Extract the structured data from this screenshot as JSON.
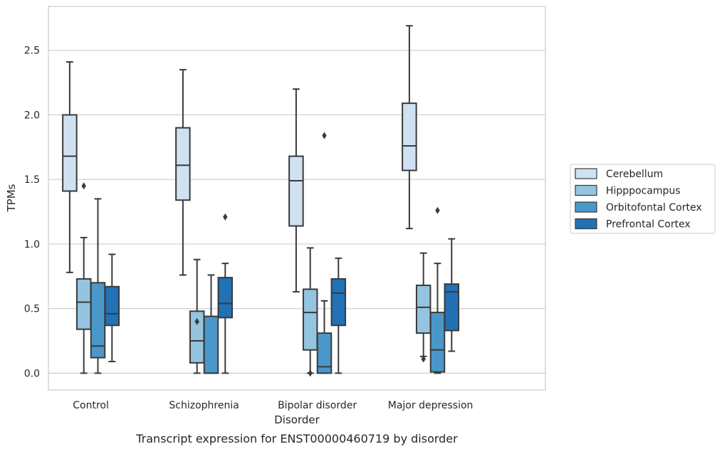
{
  "caption": "Transcript expression for ENST00000460719 by disorder",
  "chart_data": {
    "type": "boxplot",
    "xlabel": "Disorder",
    "ylabel": "TPMs",
    "ylim": [
      -0.13,
      2.84
    ],
    "yticks": [
      "0.0",
      "0.5",
      "1.0",
      "1.5",
      "2.0",
      "2.5"
    ],
    "ytick_values": [
      0.0,
      0.5,
      1.0,
      1.5,
      2.0,
      2.5
    ],
    "grid": "horizontal",
    "legend_position": "right",
    "categories": [
      "Control",
      "Schizophrenia",
      "Bipolar disorder",
      "Major depression"
    ],
    "series": [
      {
        "name": "Cerebellum",
        "color": "#d0e1f2",
        "boxes": [
          {
            "whislo": 0.78,
            "q1": 1.41,
            "med": 1.68,
            "q3": 2.0,
            "whishi": 2.41,
            "fliers": []
          },
          {
            "whislo": 0.76,
            "q1": 1.34,
            "med": 1.61,
            "q3": 1.9,
            "whishi": 2.35,
            "fliers": []
          },
          {
            "whislo": 0.63,
            "q1": 1.14,
            "med": 1.49,
            "q3": 1.68,
            "whishi": 2.2,
            "fliers": []
          },
          {
            "whislo": 1.12,
            "q1": 1.57,
            "med": 1.76,
            "q3": 2.09,
            "whishi": 2.69,
            "fliers": []
          }
        ]
      },
      {
        "name": "Hipppocampus",
        "color": "#94c4df",
        "boxes": [
          {
            "whislo": 0.0,
            "q1": 0.34,
            "med": 0.55,
            "q3": 0.73,
            "whishi": 1.05,
            "fliers": [
              1.45
            ]
          },
          {
            "whislo": 0.0,
            "q1": 0.08,
            "med": 0.25,
            "q3": 0.48,
            "whishi": 0.88,
            "fliers": [
              0.4
            ]
          },
          {
            "whislo": 0.0,
            "q1": 0.18,
            "med": 0.47,
            "q3": 0.65,
            "whishi": 0.97,
            "fliers": [
              0.0
            ]
          },
          {
            "whislo": 0.13,
            "q1": 0.31,
            "med": 0.51,
            "q3": 0.68,
            "whishi": 0.93,
            "fliers": [
              0.11
            ]
          }
        ]
      },
      {
        "name": "Orbitofontal Cortex",
        "color": "#4a98c9",
        "boxes": [
          {
            "whislo": 0.0,
            "q1": 0.12,
            "med": 0.21,
            "q3": 0.7,
            "whishi": 1.35,
            "fliers": []
          },
          {
            "whislo": 0.0,
            "q1": 0.0,
            "med": 0.0,
            "q3": 0.44,
            "whishi": 0.76,
            "fliers": []
          },
          {
            "whislo": 0.0,
            "q1": 0.0,
            "med": 0.05,
            "q3": 0.31,
            "whishi": 0.56,
            "fliers": [
              1.84
            ]
          },
          {
            "whislo": 0.0,
            "q1": 0.01,
            "med": 0.18,
            "q3": 0.47,
            "whishi": 0.85,
            "fliers": [
              1.26
            ]
          }
        ]
      },
      {
        "name": "Prefrontal Cortex",
        "color": "#2171b5",
        "boxes": [
          {
            "whislo": 0.09,
            "q1": 0.37,
            "med": 0.46,
            "q3": 0.67,
            "whishi": 0.92,
            "fliers": []
          },
          {
            "whislo": 0.0,
            "q1": 0.43,
            "med": 0.54,
            "q3": 0.74,
            "whishi": 0.85,
            "fliers": [
              1.21
            ]
          },
          {
            "whislo": 0.0,
            "q1": 0.37,
            "med": 0.62,
            "q3": 0.73,
            "whishi": 0.89,
            "fliers": []
          },
          {
            "whislo": 0.17,
            "q1": 0.33,
            "med": 0.63,
            "q3": 0.69,
            "whishi": 1.04,
            "fliers": []
          }
        ]
      }
    ]
  }
}
